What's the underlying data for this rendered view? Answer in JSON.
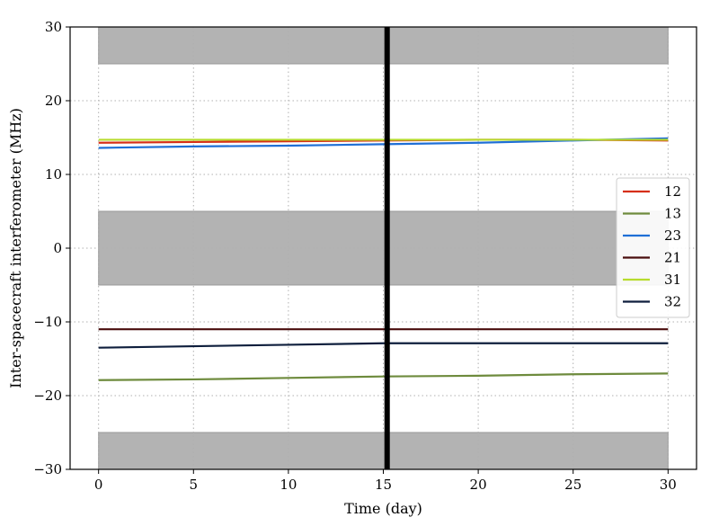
{
  "chart_data": {
    "type": "line",
    "title": "",
    "xlabel": "Time (day)",
    "ylabel": "Inter-spacecraft interferometer (MHz)",
    "xlim": [
      -1.5,
      31.5
    ],
    "ylim": [
      -30,
      30
    ],
    "xticks": [
      0,
      5,
      10,
      15,
      20,
      25,
      30
    ],
    "yticks": [
      -30,
      -20,
      -10,
      0,
      10,
      20,
      30
    ],
    "xtick_labels": [
      "0",
      "5",
      "10",
      "15",
      "20",
      "25",
      "30"
    ],
    "ytick_labels": [
      "−30",
      "−20",
      "−10",
      "0",
      "10",
      "20",
      "30"
    ],
    "grid": true,
    "legend_position": "center-right",
    "forbidden_bands": [
      {
        "x": [
          0,
          30
        ],
        "y": [
          25,
          30
        ]
      },
      {
        "x": [
          0,
          30
        ],
        "y": [
          -5,
          5
        ]
      },
      {
        "x": [
          0,
          30
        ],
        "y": [
          -30,
          -25
        ]
      }
    ],
    "vertical_line_x": 15.2,
    "series": [
      {
        "name": "12",
        "color": "#d62f16",
        "x": [
          0,
          5,
          10,
          15,
          20,
          25,
          30
        ],
        "y": [
          14.3,
          14.4,
          14.5,
          14.6,
          14.7,
          14.7,
          14.6
        ]
      },
      {
        "name": "13",
        "color": "#6e8b3d",
        "x": [
          0,
          5,
          10,
          15,
          20,
          25,
          30
        ],
        "y": [
          -17.9,
          -17.8,
          -17.6,
          -17.4,
          -17.3,
          -17.1,
          -17.0
        ]
      },
      {
        "name": "23",
        "color": "#1f6fd6",
        "x": [
          0,
          5,
          10,
          15,
          20,
          25,
          30
        ],
        "y": [
          13.6,
          13.8,
          13.9,
          14.1,
          14.3,
          14.6,
          14.9
        ]
      },
      {
        "name": "21",
        "color": "#4a0e0e",
        "x": [
          0,
          5,
          10,
          15,
          20,
          25,
          30
        ],
        "y": [
          -11.0,
          -11.0,
          -11.0,
          -11.0,
          -11.0,
          -11.0,
          -11.0
        ]
      },
      {
        "name": "31",
        "color": "#b7dc2e",
        "x": [
          0,
          5,
          10,
          15,
          20,
          25,
          30
        ],
        "y": [
          14.7,
          14.7,
          14.7,
          14.7,
          14.7,
          14.7,
          14.7
        ]
      },
      {
        "name": "32",
        "color": "#0f1f3d",
        "x": [
          0,
          5,
          10,
          15,
          20,
          25,
          30
        ],
        "y": [
          -13.5,
          -13.3,
          -13.1,
          -12.9,
          -12.9,
          -12.9,
          -12.9
        ]
      }
    ]
  }
}
